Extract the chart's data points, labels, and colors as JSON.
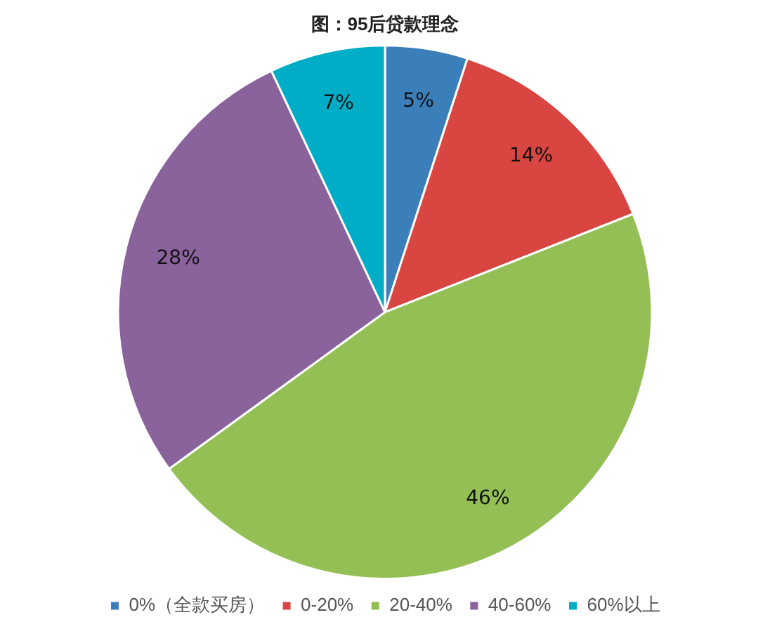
{
  "chart_data": {
    "type": "pie",
    "title": "图：95后贷款理念",
    "categories": [
      "0%（全款买房）",
      "0-20%",
      "20-40%",
      "40-60%",
      "60%以上"
    ],
    "values": [
      5,
      14,
      46,
      28,
      7
    ],
    "colors": [
      "#3a7fba",
      "#d94541",
      "#93bf55",
      "#8a629c",
      "#00adc6"
    ],
    "value_labels": [
      "5%",
      "14%",
      "46%",
      "28%",
      "7%"
    ],
    "legend": "bottom"
  }
}
